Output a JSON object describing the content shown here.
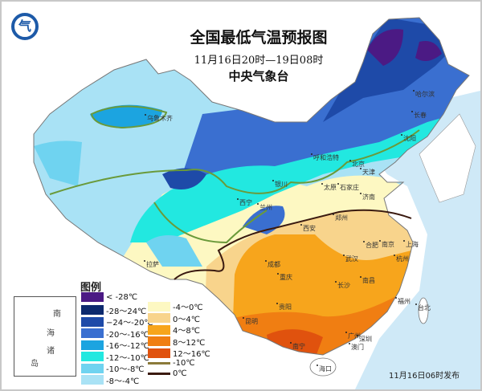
{
  "title": "全国最低气温预报图",
  "period": "11月16日20时—19日08时",
  "issuer": "中央气象台",
  "published": "11月16日06时发布",
  "legend": {
    "title": "图例",
    "items": [
      {
        "label": "< -28℃",
        "color": "#4b1a84"
      },
      {
        "label": "-28～24℃",
        "color": "#0d2a6e"
      },
      {
        "label": "−24～-20℃",
        "color": "#1e4aa8"
      },
      {
        "label": "-20～-16℃",
        "color": "#3a6fd0"
      },
      {
        "label": "-16～-12℃",
        "color": "#1ca4e0"
      },
      {
        "label": "-12～-10℃",
        "color": "#22e8e0"
      },
      {
        "label": "-10～-8℃",
        "color": "#6fd3f0"
      },
      {
        "label": "-8～-4℃",
        "color": "#a9e2f5"
      },
      {
        "label": "-4～0℃",
        "color": "#fdf8c2"
      },
      {
        "label": "0～4℃",
        "color": "#f8d48c"
      },
      {
        "label": "4～8℃",
        "color": "#f7a51c"
      },
      {
        "label": "8～12℃",
        "color": "#f07e12"
      },
      {
        "label": "12～16℃",
        "color": "#e0520e"
      }
    ],
    "lines": [
      {
        "label": "-10℃",
        "color": "#8b7a3a"
      },
      {
        "label": "0℃",
        "color": "#3a1a10"
      }
    ]
  },
  "inset": {
    "chars": [
      "南",
      "海",
      "诸",
      "岛"
    ]
  },
  "cities": [
    "乌鲁木齐",
    "哈尔滨",
    "长春",
    "沈阳",
    "呼和浩特",
    "北京",
    "天津",
    "太原",
    "石家庄",
    "银川",
    "西宁",
    "兰州",
    "济南",
    "郑州",
    "西安",
    "拉萨",
    "成都",
    "重庆",
    "合肥",
    "南京",
    "上海",
    "武汉",
    "杭州",
    "长沙",
    "南昌",
    "福州",
    "贵阳",
    "昆明",
    "台北",
    "南宁",
    "广州",
    "深圳",
    "澳门",
    "海口"
  ],
  "sea_color": "#cfe9f7"
}
